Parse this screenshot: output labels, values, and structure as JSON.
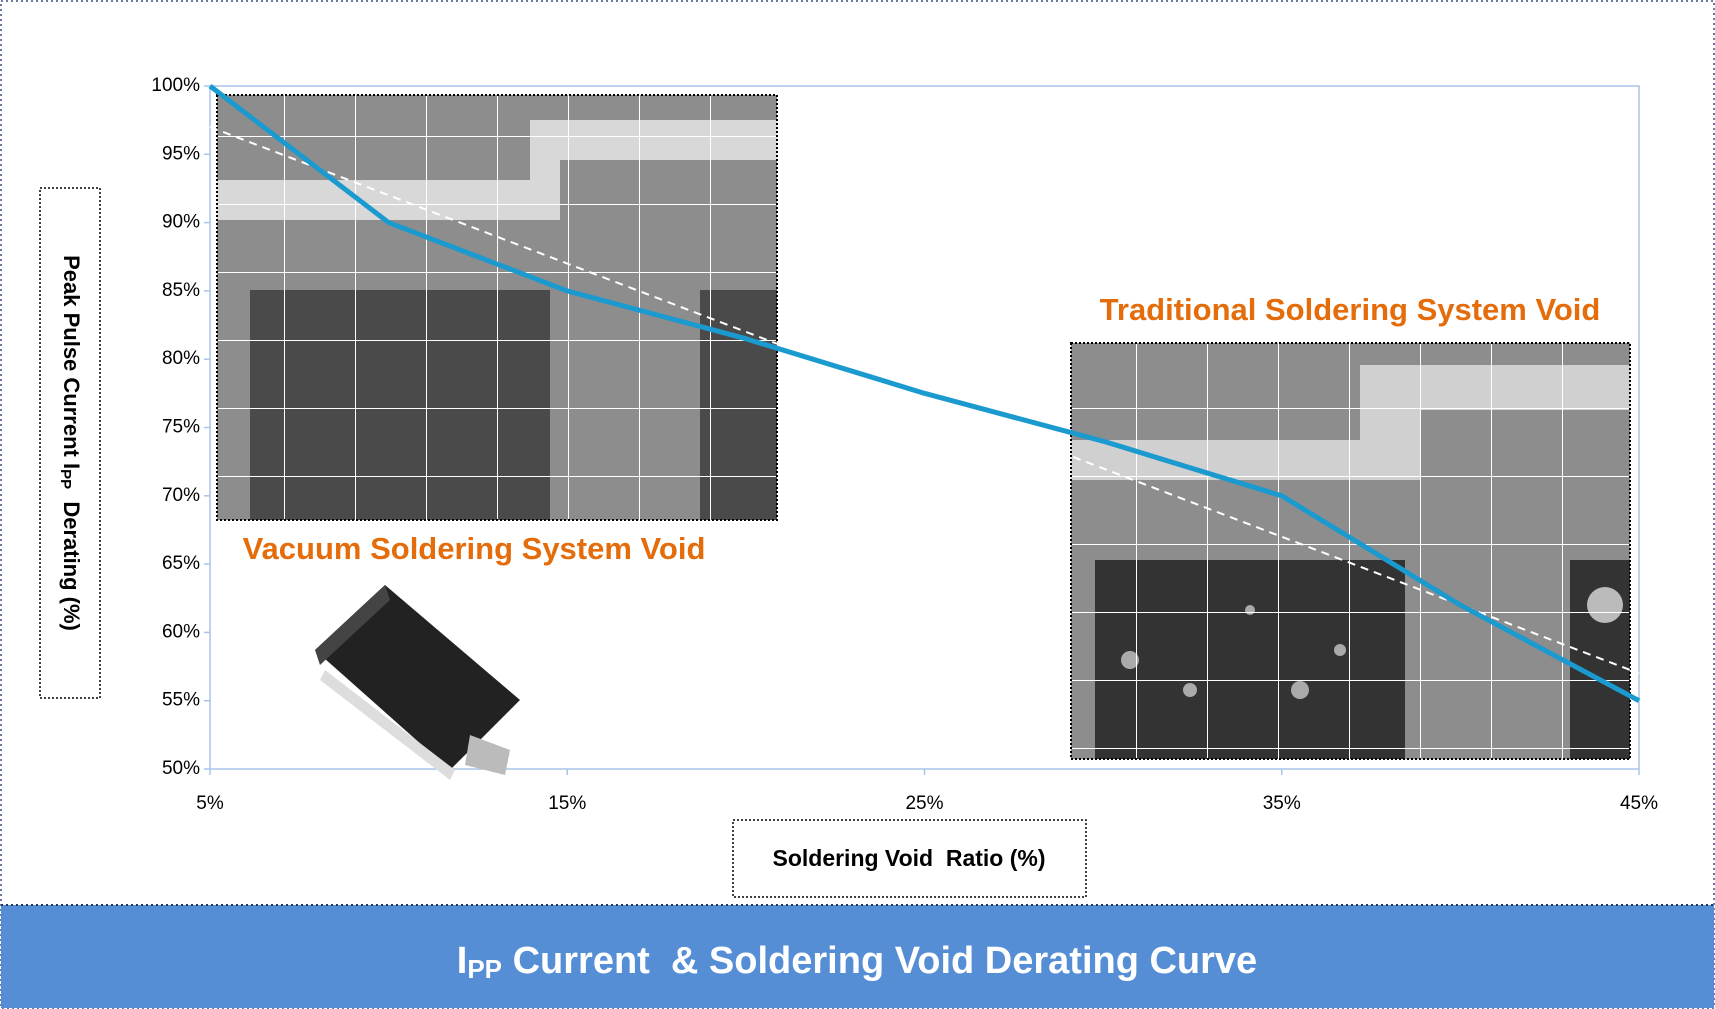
{
  "chart_data": {
    "type": "line",
    "title": {
      "text": "I",
      "subscript": "PP",
      "suffix": " Current  & Soldering Void Derating Curve"
    },
    "x_label": "Soldering Void  Ratio (%)",
    "y_label": {
      "text": "Peak Pulse Current I",
      "subscript": "PP",
      "suffix": "  Derating (%)"
    },
    "annotations": [
      "Vacuum Soldering System Void",
      "Traditional Soldering System Void"
    ],
    "x": [
      5,
      10,
      15,
      20,
      25,
      30,
      35,
      40,
      45
    ],
    "series": [
      {
        "color": "#1b9ad0",
        "values": [
          100,
          90,
          85,
          81.5,
          77.5,
          74,
          70,
          62,
          55
        ]
      },
      {
        "color": "#ffffff",
        "dashed": true,
        "x": [
          5,
          45
        ],
        "values": [
          97,
          57
        ]
      }
    ],
    "xlim": [
      5,
      45
    ],
    "xticks": [
      {
        "value": 5,
        "label": "5%"
      },
      {
        "value": 15,
        "label": "15%"
      },
      {
        "value": 25,
        "label": "25%"
      },
      {
        "value": 35,
        "label": "35%"
      },
      {
        "value": 45,
        "label": "45%"
      }
    ],
    "ylim": [
      50,
      100
    ],
    "yticks": [
      {
        "value": 50,
        "label": "50%"
      },
      {
        "value": 55,
        "label": "55%"
      },
      {
        "value": 60,
        "label": "60%"
      },
      {
        "value": 65,
        "label": "65%"
      },
      {
        "value": 70,
        "label": "70%"
      },
      {
        "value": 75,
        "label": "75%"
      },
      {
        "value": 80,
        "label": "80%"
      },
      {
        "value": 85,
        "label": "85%"
      },
      {
        "value": 90,
        "label": "90%"
      },
      {
        "value": 95,
        "label": "95%"
      },
      {
        "value": 100,
        "label": "100%"
      }
    ],
    "annotation_color": "#e46c0a",
    "banner_color": "#558ed5"
  }
}
